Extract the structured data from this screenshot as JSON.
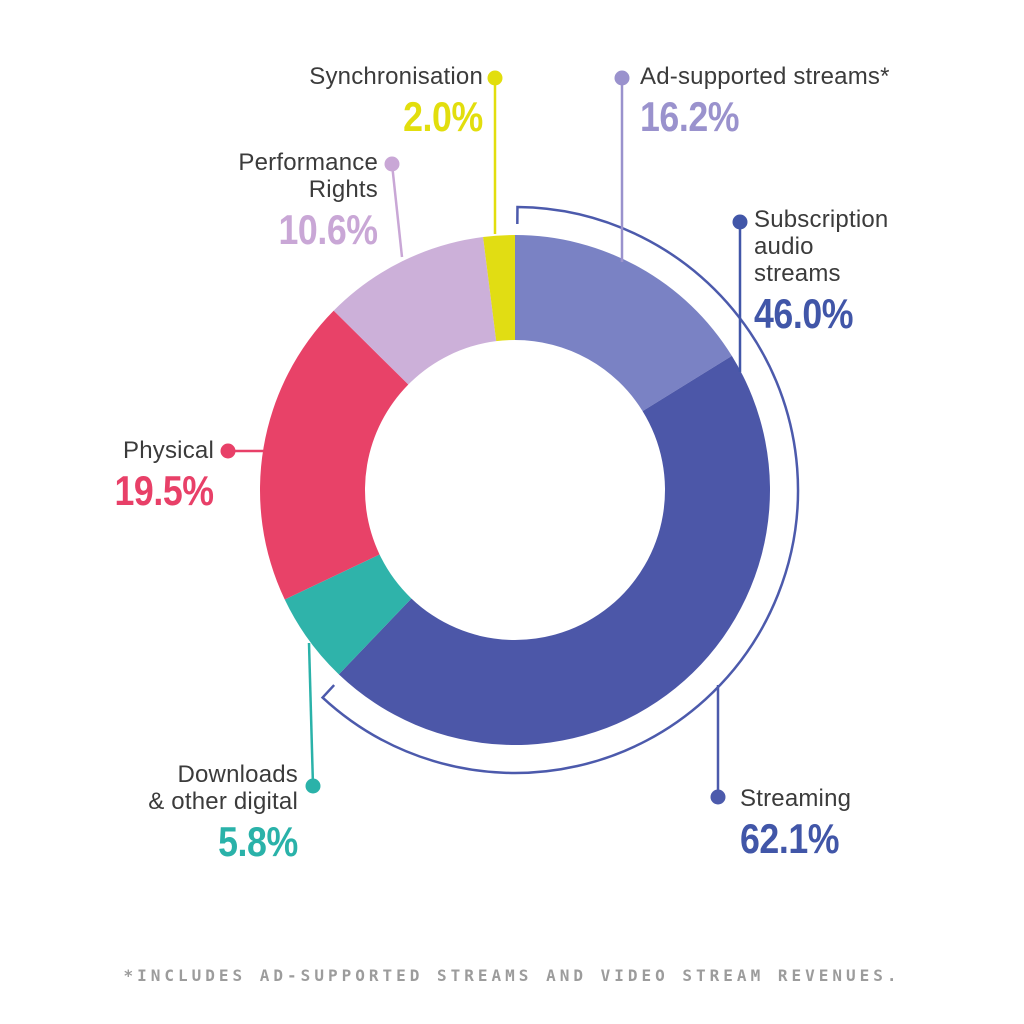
{
  "styles": {
    "background": "#ffffff",
    "label_text_color": "#3b3b3b",
    "footnote_color": "#9c9c9c",
    "bracket_color": "#4c57a8"
  },
  "chart_data": {
    "type": "pie",
    "subtype": "donut",
    "unit": "%",
    "start_angle_deg": 0,
    "direction": "clockwise",
    "slices": [
      {
        "label": "Ad-supported streams*",
        "label_display": "Ad-supported streams*",
        "value": 16.2,
        "display": "16.2%",
        "color": "#7a82c4",
        "label_color": "#9a92cd"
      },
      {
        "label": "Subscription audio streams",
        "label_display": "Subscription\naudio\nstreams",
        "value": 46.0,
        "display": "46.0%",
        "color": "#4c57a8",
        "label_color": "#4156a8"
      },
      {
        "label": "Downloads & other digital",
        "label_display": "Downloads\n& other digital",
        "value": 5.8,
        "display": "5.8%",
        "color": "#2fb3aa",
        "label_color": "#2ab2a9"
      },
      {
        "label": "Physical",
        "label_display": "Physical",
        "value": 19.5,
        "display": "19.5%",
        "color": "#e84268",
        "label_color": "#e84068"
      },
      {
        "label": "Performance Rights",
        "label_display": "Performance\nRights",
        "value": 10.6,
        "display": "10.6%",
        "color": "#ccb0d9",
        "label_color": "#c9a7d6"
      },
      {
        "label": "Synchronisation",
        "label_display": "Synchronisation",
        "value": 2.0,
        "display": "2.0%",
        "color": "#e1dd13",
        "label_color": "#e2de0d"
      }
    ],
    "overlay_bracket": {
      "label": "Streaming",
      "value": 62.1,
      "display": "62.1%",
      "color": "#4c5aac",
      "label_color": "#4156a8",
      "spans_slices": [
        0,
        1
      ]
    },
    "footnote": "*INCLUDES AD-SUPPORTED STREAMS AND VIDEO STREAM REVENUES."
  }
}
